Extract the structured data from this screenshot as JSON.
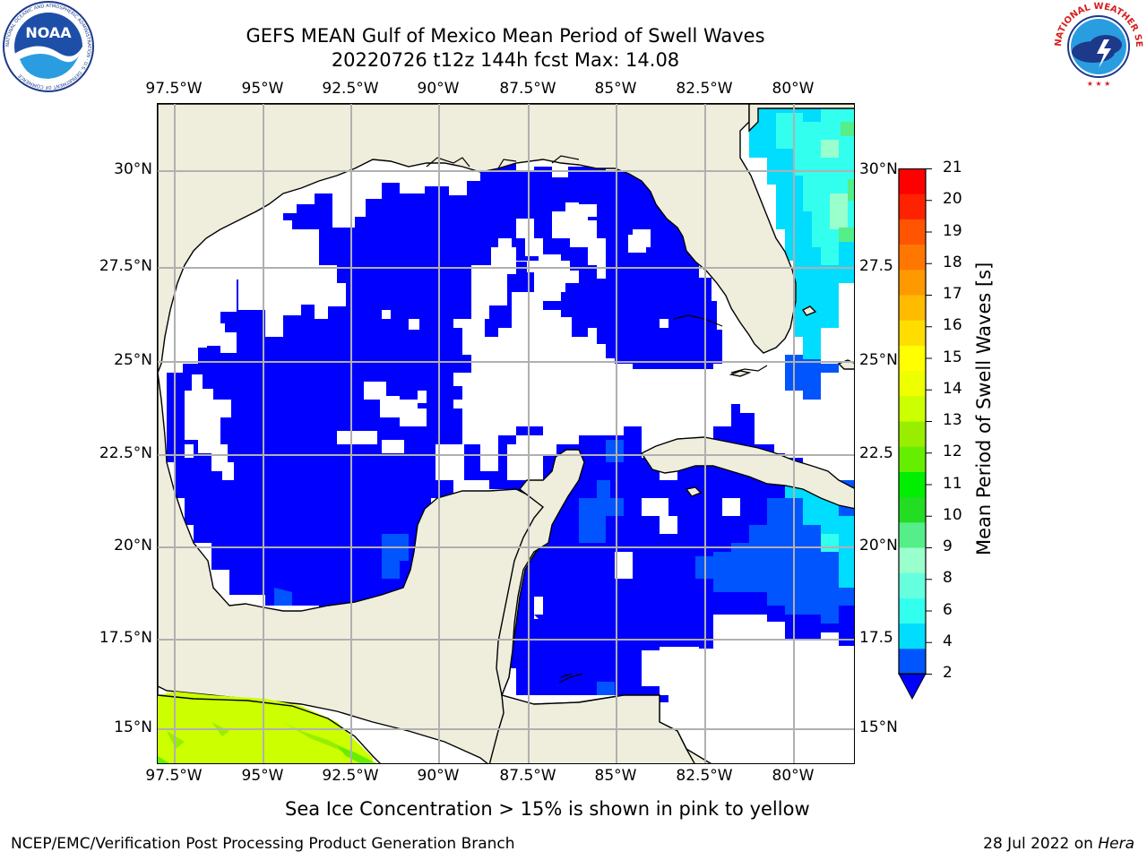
{
  "title": {
    "line1": "GEFS MEAN Gulf of Mexico Mean Period of Swell Waves",
    "line2": "20220726 t12z 144h fcst   Max: 14.08"
  },
  "map": {
    "lon_labels": [
      "97.5°W",
      "95°W",
      "92.5°W",
      "90°W",
      "87.5°W",
      "85°W",
      "82.5°W",
      "80°W"
    ],
    "lat_labels_left": [
      "30°N",
      "27.5°N",
      "25°N",
      "22.5°N",
      "20°N",
      "17.5°N",
      "15°N"
    ],
    "lat_labels_right": [
      "30°N",
      "27.5",
      "25°N",
      "22.5",
      "20°N",
      "17.5",
      "15°N"
    ],
    "land_color": "#efeedd",
    "grid_color": "#b0b0b0"
  },
  "colorbar": {
    "label": "Mean Period of Swell Waves [s]",
    "ticks": [
      "21",
      "20",
      "19",
      "18",
      "17",
      "16",
      "15",
      "14",
      "13",
      "12",
      "11",
      "10",
      "9",
      "8",
      "6",
      "4",
      "2"
    ],
    "colors_bottom_to_top": [
      "#0055ff",
      "#00ddff",
      "#33ffee",
      "#66ffdd",
      "#99ffcc",
      "#55ee88",
      "#22dd22",
      "#00ee00",
      "#66ee00",
      "#99ee00",
      "#ccff00",
      "#eeff00",
      "#ffff00",
      "#ffdd00",
      "#ffbb00",
      "#ff9900",
      "#ff7700",
      "#ff5500",
      "#ff2200",
      "#ff0000"
    ],
    "underflow_color": "#0000ff"
  },
  "caption": "Sea Ice Concentration > 15% is shown in pink to yellow",
  "footer": {
    "left": "NCEP/EMC/Verification Post Processing Product Generation Branch",
    "right_date": "28 Jul 2022 on ",
    "right_host": "Hera"
  },
  "logos": {
    "noaa_text": "NOAA",
    "noaa_ring_text": "NATIONAL OCEANIC AND ATMOSPHERIC ADMINISTRATION · U.S. DEPARTMENT OF COMMERCE",
    "nws_ring_text": "NATIONAL WEATHER SERVICE"
  }
}
